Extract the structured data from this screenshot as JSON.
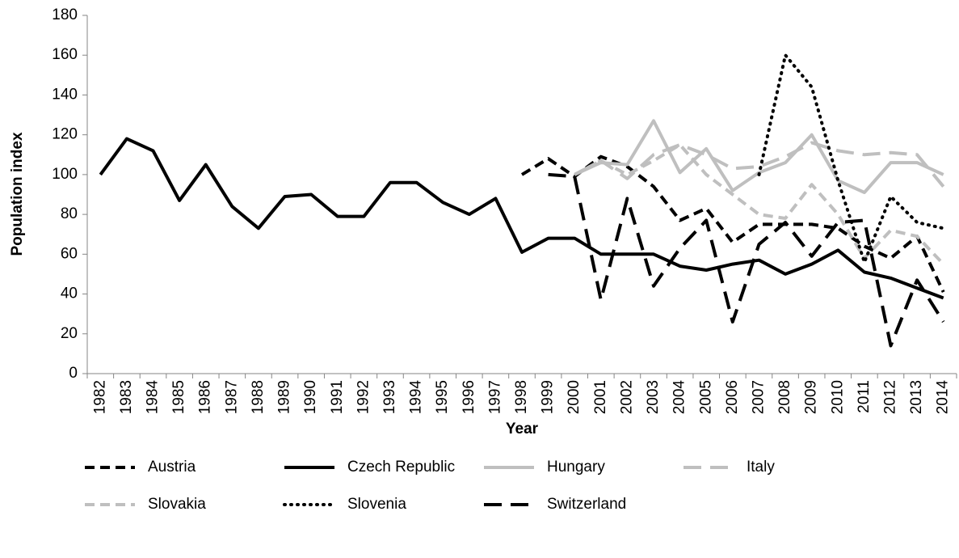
{
  "chart_data": {
    "type": "line",
    "x_label": "Year",
    "y_label": "Population index",
    "categories": [
      "1982",
      "1983",
      "1984",
      "1985",
      "1986",
      "1987",
      "1988",
      "1989",
      "1990",
      "1991",
      "1992",
      "1993",
      "1994",
      "1995",
      "1996",
      "1997",
      "1998",
      "1999",
      "2000",
      "2001",
      "2002",
      "2003",
      "2004",
      "2005",
      "2006",
      "2007",
      "2008",
      "2009",
      "2010",
      "2011",
      "2012",
      "2013",
      "2014"
    ],
    "ylim": [
      0,
      180
    ],
    "yticks": [
      0,
      20,
      40,
      60,
      80,
      100,
      120,
      140,
      160,
      180
    ],
    "legend": "bottom",
    "series": [
      {
        "name": "Austria",
        "color": "#000000",
        "dash": "short-dash",
        "values": [
          null,
          null,
          null,
          null,
          null,
          null,
          null,
          null,
          null,
          null,
          null,
          null,
          null,
          null,
          null,
          null,
          100,
          108,
          99,
          109,
          104,
          94,
          77,
          83,
          66,
          75,
          75,
          75,
          73,
          64,
          58,
          69,
          41
        ]
      },
      {
        "name": "Czech Republic",
        "color": "#000000",
        "dash": "solid",
        "values": [
          100,
          118,
          112,
          87,
          105,
          84,
          73,
          89,
          90,
          79,
          79,
          96,
          96,
          86,
          80,
          88,
          61,
          68,
          68,
          60,
          60,
          60,
          54,
          52,
          55,
          57,
          50,
          55,
          62,
          51,
          48,
          43,
          38
        ]
      },
      {
        "name": "Hungary",
        "color": "#bfbfbf",
        "dash": "solid",
        "values": [
          null,
          null,
          null,
          null,
          null,
          null,
          null,
          null,
          null,
          null,
          null,
          null,
          null,
          null,
          null,
          null,
          null,
          null,
          100,
          106,
          105,
          127,
          101,
          113,
          92,
          101,
          106,
          120,
          97,
          91,
          106,
          106,
          100
        ]
      },
      {
        "name": "Italy",
        "color": "#bfbfbf",
        "dash": "long-dash",
        "values": [
          null,
          null,
          null,
          null,
          null,
          null,
          null,
          null,
          null,
          null,
          null,
          null,
          null,
          null,
          null,
          null,
          null,
          null,
          100,
          107,
          98,
          110,
          115,
          110,
          103,
          104,
          109,
          116,
          112,
          110,
          111,
          110,
          94
        ]
      },
      {
        "name": "Slovakia",
        "color": "#bfbfbf",
        "dash": "short-dash",
        "values": [
          null,
          null,
          null,
          null,
          null,
          null,
          null,
          null,
          null,
          null,
          null,
          null,
          null,
          null,
          null,
          null,
          null,
          null,
          100,
          107,
          100,
          107,
          115,
          100,
          90,
          80,
          78,
          95,
          80,
          58,
          72,
          69,
          55
        ]
      },
      {
        "name": "Slovenia",
        "color": "#000000",
        "dash": "dotted",
        "values": [
          null,
          null,
          null,
          null,
          null,
          null,
          null,
          null,
          null,
          null,
          null,
          null,
          null,
          null,
          null,
          null,
          null,
          null,
          null,
          null,
          null,
          null,
          null,
          null,
          null,
          100,
          160,
          144,
          97,
          56,
          89,
          76,
          73
        ]
      },
      {
        "name": "Switzerland",
        "color": "#000000",
        "dash": "long-dash",
        "values": [
          null,
          null,
          null,
          null,
          null,
          null,
          null,
          null,
          null,
          null,
          null,
          null,
          null,
          null,
          null,
          null,
          null,
          100,
          99,
          37,
          88,
          44,
          63,
          77,
          26,
          65,
          76,
          59,
          76,
          77,
          14,
          47,
          26
        ]
      }
    ]
  }
}
